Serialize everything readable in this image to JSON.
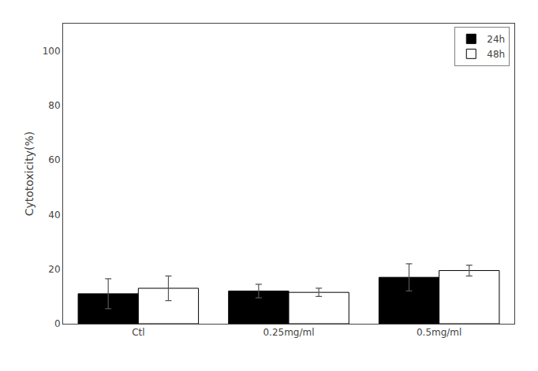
{
  "chart_data": {
    "type": "bar",
    "categories": [
      "Ctl",
      "0.25mg/ml",
      "0.5mg/ml"
    ],
    "series": [
      {
        "name": "24h",
        "color": "#000000",
        "values": [
          11.0,
          12.0,
          17.0
        ],
        "errors": [
          5.5,
          2.5,
          5.0
        ]
      },
      {
        "name": "48h",
        "color": "#ffffff",
        "values": [
          13.0,
          11.5,
          19.5
        ],
        "errors": [
          4.5,
          1.5,
          2.0
        ]
      }
    ],
    "ylabel": "Cytotoxicity(%)",
    "ylim": [
      0,
      110
    ],
    "yticks": [
      0,
      20,
      40,
      60,
      80,
      100
    ],
    "legend": "upper right",
    "grid": false
  }
}
